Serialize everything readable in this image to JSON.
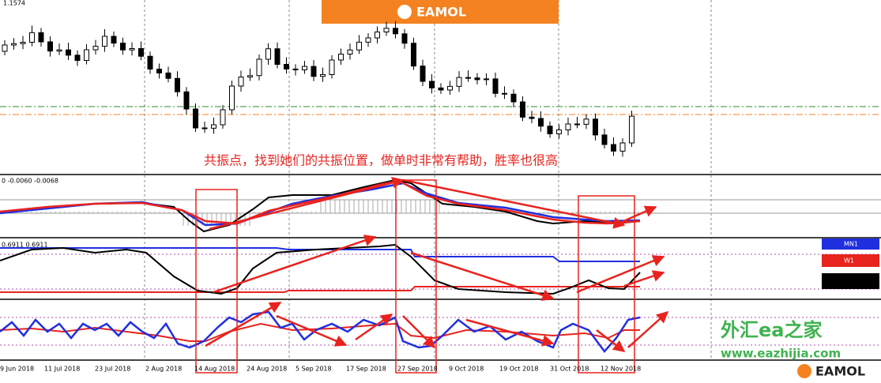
{
  "header": {
    "price_label": "1.1574",
    "logo": "EAMOL"
  },
  "annotation": "共振点，找到她们的共振位置，做单时非常有帮助，胜率也很高",
  "panels": [
    {
      "label": "0 -0.0060 -0.0068"
    },
    {
      "label": "0.6911 0.6911"
    }
  ],
  "legend": [
    "MN1",
    "W1"
  ],
  "watermark": {
    "title": "外汇ea之家",
    "url": "www.eazhijia.com",
    "logo": "EAMOL"
  },
  "dates": [
    "9 Jun 2018",
    "11 Jul 2018",
    "23 Jul 2018",
    "2 Aug 2018",
    "14 Aug 2018",
    "24 Aug 2018",
    "5 Sep 2018",
    "17 Sep 2018",
    "27 Sep 2018",
    "9 Oct 2018",
    "19 Oct 2018",
    "31 Oct 2018",
    "12 Nov 2018"
  ]
}
